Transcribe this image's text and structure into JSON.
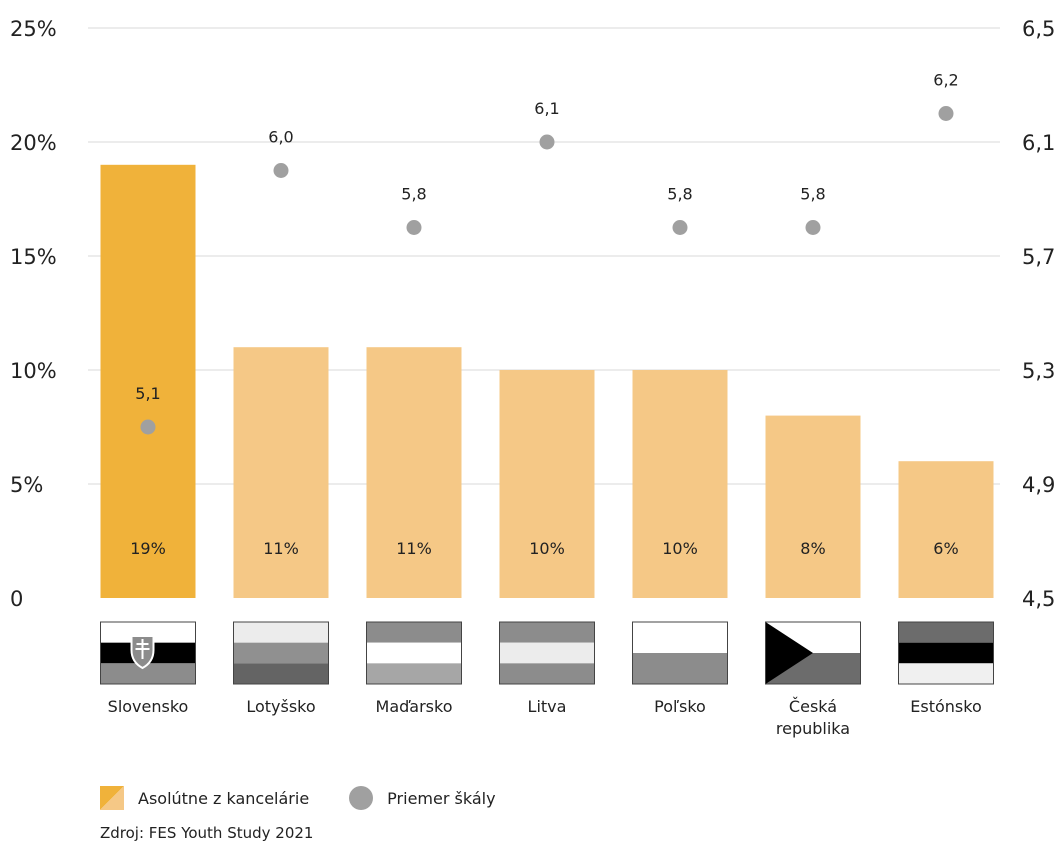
{
  "chart_data": {
    "type": "bar",
    "categories": [
      "Slovensko",
      "Lotyšsko",
      "Maďarsko",
      "Litva",
      "Poľsko",
      "Česká republika",
      "Estónsko"
    ],
    "category_lines": [
      [
        "Slovensko"
      ],
      [
        "Lotyšsko"
      ],
      [
        "Maďarsko"
      ],
      [
        "Litva"
      ],
      [
        "Poľsko"
      ],
      [
        "Česká",
        "republika"
      ],
      [
        "Estónsko"
      ]
    ],
    "series": [
      {
        "name": "Asolútne z kancelárie",
        "axis": "left",
        "values": [
          19,
          11,
          11,
          10,
          10,
          8,
          6
        ],
        "labels": [
          "19%",
          "11%",
          "11%",
          "10%",
          "10%",
          "8%",
          "6%"
        ]
      },
      {
        "name": "Priemer škály",
        "axis": "right",
        "type": "scatter",
        "values": [
          5.1,
          6.0,
          5.8,
          6.1,
          5.8,
          5.8,
          6.2
        ],
        "labels": [
          "5,1",
          "6,0",
          "5,8",
          "6,1",
          "5,8",
          "5,8",
          "6,2"
        ]
      }
    ],
    "y_left": {
      "ylim": [
        0,
        25
      ],
      "ticks": [
        "0",
        "5%",
        "10%",
        "15%",
        "20%",
        "25%"
      ]
    },
    "y_right": {
      "ylim": [
        4.5,
        6.5
      ],
      "ticks": [
        "4,5",
        "4,9",
        "5,3",
        "5,7",
        "6,1",
        "6,5"
      ]
    },
    "grid": true,
    "highlight_index": 0,
    "colors": {
      "highlight": "#f0b23a",
      "bar": "#f5c886",
      "dot": "#a0a0a0",
      "grid": "#d9d9d9"
    },
    "flags_shown": true
  },
  "legend": {
    "bar_label": "Asolútne z kancelárie",
    "dot_label": "Priemer škály"
  },
  "source": "Zdroj: FES Youth Study 2021"
}
